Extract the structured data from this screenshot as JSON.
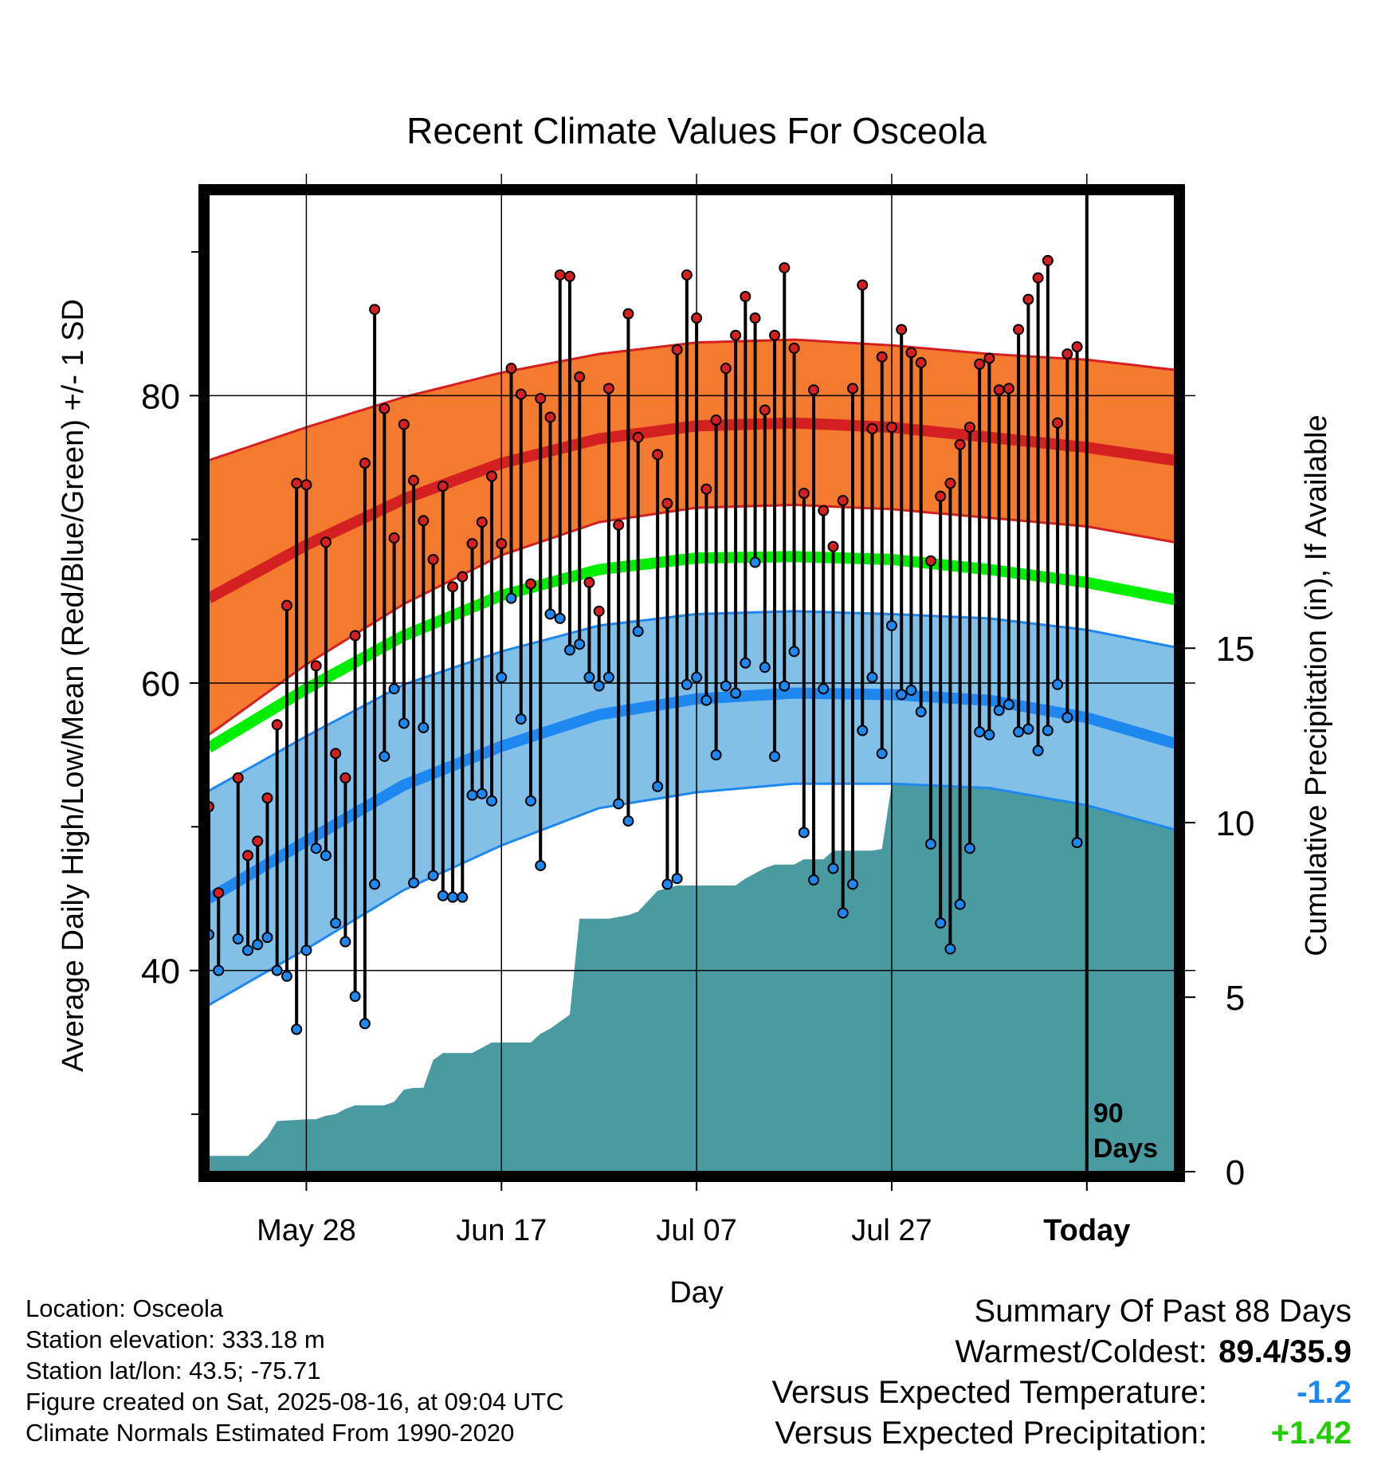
{
  "chart_data": {
    "type": "line",
    "title": "Recent Climate Values For Osceola",
    "xlabel": "Day",
    "ylabel": "Average Daily High/Low/Mean (Red/Blue/Green) +/- 1 SD",
    "y2label": "Cumulative Precipitation (in), If Available",
    "ylim": [
      26,
      94
    ],
    "y2lim": [
      0,
      28
    ],
    "xlim": [
      -90,
      9
    ],
    "x_tick_labels": [
      {
        "day": -80,
        "label": "May 28"
      },
      {
        "day": -60,
        "label": "Jun 17"
      },
      {
        "day": -40,
        "label": "Jul 07"
      },
      {
        "day": -20,
        "label": "Jul 27"
      },
      {
        "day": 0,
        "label": "Today"
      }
    ],
    "y_tick_labels": [
      40,
      60,
      80
    ],
    "y_minor_ticks": [
      30,
      50,
      70,
      90
    ],
    "y2_tick_labels": [
      0,
      5,
      10,
      15
    ],
    "grid": true,
    "today_marker_label": [
      "90",
      "Days"
    ],
    "normals": {
      "x": [
        -90,
        -80,
        -70,
        -60,
        -50,
        -40,
        -30,
        -20,
        -10,
        0,
        9
      ],
      "high_mean": [
        65.9,
        69.6,
        72.8,
        75.3,
        77.0,
        77.9,
        78.1,
        77.8,
        77.1,
        76.4,
        75.5
      ],
      "high_upper": [
        75.5,
        77.8,
        79.9,
        81.6,
        82.9,
        83.7,
        83.9,
        83.5,
        82.9,
        82.5,
        81.8
      ],
      "high_lower": [
        56.4,
        61.3,
        65.5,
        68.9,
        71.2,
        72.2,
        72.4,
        72.1,
        71.5,
        70.9,
        69.8
      ],
      "mean": [
        55.5,
        59.6,
        63.3,
        66.1,
        67.9,
        68.7,
        68.8,
        68.6,
        67.9,
        67.0,
        65.8
      ],
      "low_mean": [
        45.0,
        49.0,
        52.9,
        55.6,
        57.8,
        58.9,
        59.3,
        59.2,
        58.8,
        57.6,
        55.8
      ],
      "low_upper": [
        52.5,
        56.3,
        59.9,
        62.2,
        64.0,
        64.8,
        65.0,
        64.8,
        64.5,
        63.7,
        62.5
      ],
      "low_lower": [
        37.6,
        41.5,
        45.6,
        48.7,
        51.3,
        52.4,
        53.0,
        53.0,
        52.7,
        51.5,
        49.8
      ]
    },
    "series": [
      {
        "name": "High",
        "color": "#d42020",
        "values": [
          51.4,
          45.4,
          null,
          53.4,
          48.0,
          49.0,
          52.0,
          57.1,
          65.4,
          73.9,
          73.8,
          61.2,
          69.8,
          55.1,
          53.4,
          63.3,
          75.3,
          86.0,
          79.1,
          70.1,
          78.0,
          74.1,
          71.3,
          68.6,
          73.7,
          66.7,
          67.4,
          69.7,
          71.2,
          74.4,
          69.7,
          81.9,
          80.1,
          66.9,
          79.8,
          78.5,
          88.4,
          88.3,
          81.3,
          67.0,
          65.0,
          80.5,
          71.0,
          85.7,
          77.1,
          null,
          75.9,
          72.5,
          83.2,
          88.4,
          85.4,
          73.5,
          78.3,
          81.9,
          84.2,
          86.9,
          85.4,
          79.0,
          84.2,
          88.9,
          83.3,
          73.2,
          80.4,
          72.0,
          69.5,
          72.7,
          80.5,
          87.7,
          77.7,
          82.7,
          77.8,
          84.6,
          83.0,
          82.3,
          68.5,
          73.0,
          73.9,
          76.6,
          77.8,
          82.2,
          82.6,
          80.4,
          80.5,
          84.6,
          86.7,
          88.2,
          89.4,
          78.1,
          82.9,
          83.4
        ]
      },
      {
        "name": "Low",
        "color": "#1e87f0",
        "values": [
          42.5,
          40.0,
          null,
          42.2,
          41.4,
          41.8,
          42.3,
          40.0,
          39.6,
          35.9,
          41.4,
          48.5,
          48.0,
          43.3,
          42.0,
          38.2,
          36.3,
          46.0,
          54.9,
          59.6,
          57.2,
          46.1,
          56.9,
          46.6,
          45.2,
          45.1,
          45.1,
          52.2,
          52.3,
          51.8,
          60.4,
          65.9,
          57.5,
          51.8,
          47.3,
          64.8,
          64.5,
          62.3,
          62.7,
          60.4,
          59.8,
          60.4,
          51.6,
          50.4,
          63.6,
          null,
          52.8,
          46.0,
          46.4,
          59.9,
          60.4,
          58.8,
          55.0,
          59.8,
          59.3,
          61.4,
          68.4,
          61.1,
          54.9,
          59.8,
          62.2,
          49.6,
          46.3,
          59.6,
          47.1,
          44.0,
          46.0,
          56.7,
          60.4,
          55.1,
          64.0,
          59.2,
          59.5,
          58.0,
          48.8,
          43.3,
          41.5,
          44.6,
          48.5,
          56.6,
          56.4,
          58.1,
          58.5,
          56.6,
          56.8,
          55.3,
          56.7,
          59.9,
          57.6,
          48.9
        ]
      }
    ],
    "precip_cumulative": {
      "x": [
        -90,
        -88,
        -86,
        -85,
        -84,
        -83,
        -80,
        -79,
        -78,
        -77,
        -76,
        -75,
        -72,
        -71,
        -70,
        -69,
        -68,
        -67,
        -66,
        -63,
        -62,
        -61,
        -59,
        -57,
        -56,
        -55,
        -53,
        -52,
        -50,
        -49,
        -47,
        -46,
        -45,
        -44,
        -42,
        -41,
        -40,
        -36,
        -35,
        -33,
        -32,
        -30,
        -29,
        -27,
        -26,
        -25,
        -22,
        -21,
        -20,
        -18,
        -16,
        -15,
        -13,
        -6,
        -5,
        -3,
        0,
        1,
        9
      ],
      "values": [
        0.45,
        0.45,
        0.45,
        0.7,
        1.0,
        1.45,
        1.5,
        1.5,
        1.6,
        1.65,
        1.8,
        1.9,
        1.9,
        2.0,
        2.35,
        2.4,
        2.4,
        3.2,
        3.4,
        3.4,
        3.55,
        3.7,
        3.7,
        3.7,
        3.95,
        4.1,
        4.5,
        7.25,
        7.25,
        7.25,
        7.35,
        7.45,
        7.75,
        8.05,
        8.2,
        8.2,
        8.2,
        8.2,
        8.4,
        8.7,
        8.8,
        8.8,
        8.95,
        8.95,
        9.2,
        9.2,
        9.2,
        9.25,
        11.1,
        11.1,
        11.15,
        11.2,
        11.25,
        11.25,
        11.3,
        11.3,
        11.4,
        11.4,
        11.4
      ]
    },
    "colors": {
      "high_band": "#f47a30",
      "high_band_edge": "#d42020",
      "high_mean_line": "#d42020",
      "low_band": "#82c0e8",
      "low_band_edge": "#1e87f0",
      "low_mean_line": "#1e87f0",
      "mean_line": "#00ee00",
      "precip_fill": "#4a9aa2",
      "high_marker": "#d42020",
      "low_marker": "#1e87f0"
    }
  },
  "footer": {
    "location": "Location: Osceola",
    "elevation": "Station elevation: 333.18 m",
    "latlon": "Station lat/lon: 43.5; -75.71",
    "created": "Figure created on Sat, 2025-08-16, at 09:04 UTC",
    "normals": "Climate Normals Estimated From 1990-2020"
  },
  "summary": {
    "title": "Summary Of Past 88 Days",
    "warm_cold_label": "Warmest/Coldest:",
    "warm_cold_value": "89.4/35.9",
    "temp_label": "Versus Expected Temperature:",
    "temp_value": "-1.2",
    "temp_color": "#1e87f0",
    "precip_label": "Versus Expected Precipitation:",
    "precip_value": "+1.42",
    "precip_color": "#22cc00"
  }
}
